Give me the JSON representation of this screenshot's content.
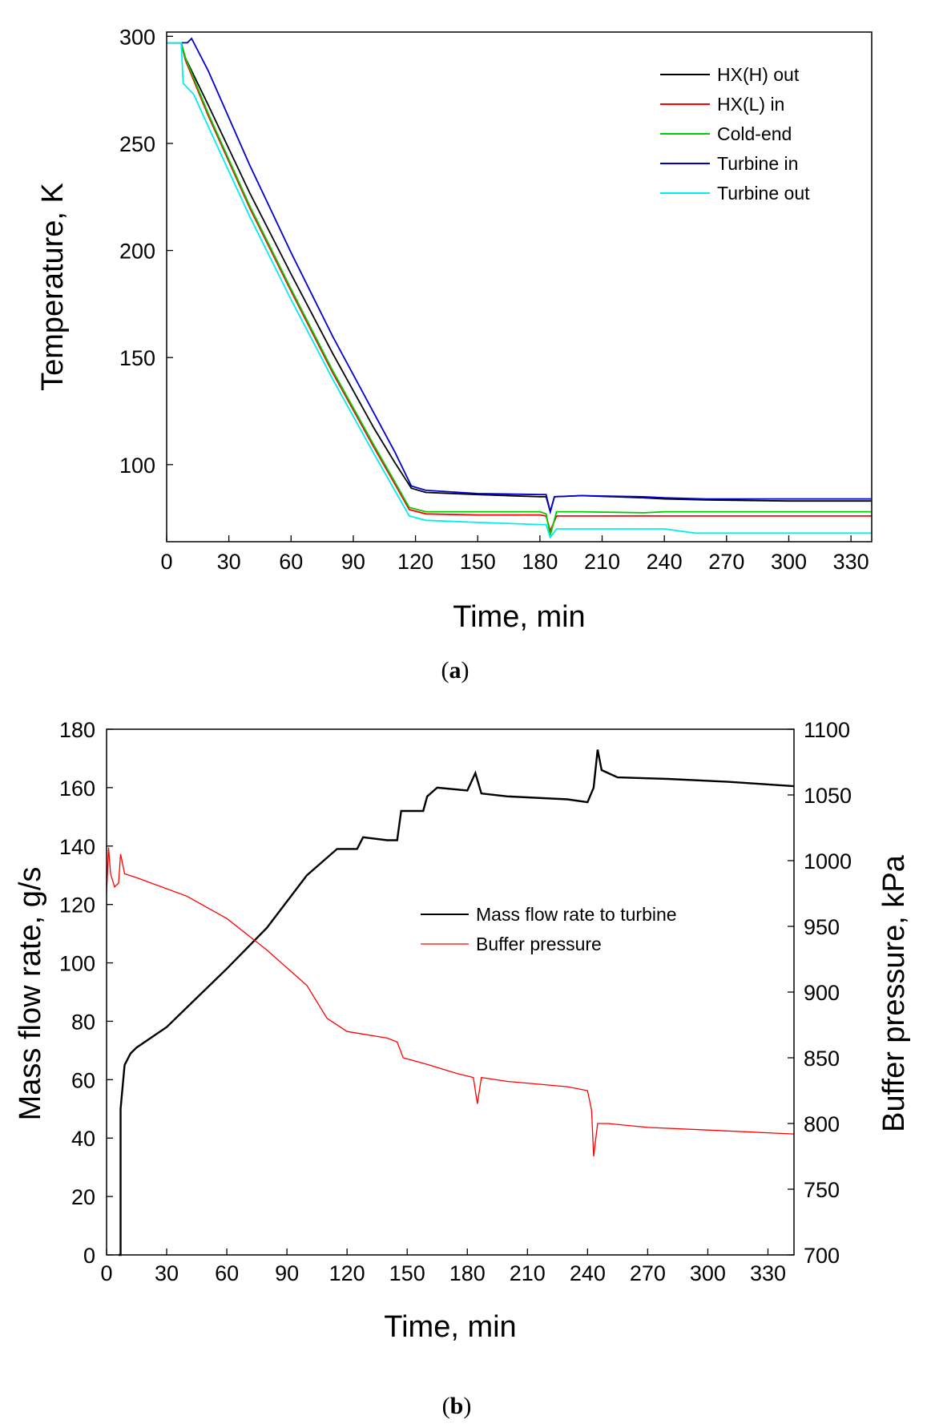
{
  "chart_data": [
    {
      "id": "a",
      "type": "line",
      "caption_letter": "a",
      "xlabel": "Time, min",
      "ylabel": "Temperature, K",
      "xlim": [
        0,
        340
      ],
      "ylim": [
        64,
        302
      ],
      "xticks": [
        0,
        30,
        60,
        90,
        120,
        150,
        180,
        210,
        240,
        270,
        300,
        330
      ],
      "yticks": [
        100,
        150,
        200,
        250,
        300
      ],
      "legend_position": "top-right",
      "series": [
        {
          "name": "HX(H) out",
          "color": "#000000",
          "points": [
            [
              0,
              297
            ],
            [
              7,
              297
            ],
            [
              9,
              290
            ],
            [
              20,
              268
            ],
            [
              40,
              227
            ],
            [
              60,
              189
            ],
            [
              80,
              152
            ],
            [
              100,
              117
            ],
            [
              110,
              101
            ],
            [
              118,
              89
            ],
            [
              125,
              87
            ],
            [
              150,
              86
            ],
            [
              180,
              85
            ],
            [
              183,
              85
            ],
            [
              185,
              78
            ],
            [
              187,
              85
            ],
            [
              200,
              85.5
            ],
            [
              230,
              84.5
            ],
            [
              240,
              84
            ],
            [
              260,
              83.5
            ],
            [
              300,
              83
            ],
            [
              340,
              83
            ]
          ]
        },
        {
          "name": "HX(L) in",
          "color": "#ff0000",
          "points": [
            [
              0,
              297
            ],
            [
              7,
              297
            ],
            [
              9,
              289
            ],
            [
              20,
              263
            ],
            [
              40,
              220
            ],
            [
              60,
              181
            ],
            [
              80,
              143
            ],
            [
              100,
              108
            ],
            [
              110,
              91
            ],
            [
              117,
              79
            ],
            [
              125,
              77
            ],
            [
              150,
              76.5
            ],
            [
              180,
              76.5
            ],
            [
              183,
              76
            ],
            [
              185,
              69
            ],
            [
              188,
              76
            ],
            [
              200,
              76
            ],
            [
              230,
              76
            ],
            [
              240,
              76
            ],
            [
              260,
              76
            ],
            [
              300,
              76
            ],
            [
              340,
              76
            ]
          ]
        },
        {
          "name": "Cold-end",
          "color": "#00cc00",
          "points": [
            [
              0,
              297
            ],
            [
              7,
              297
            ],
            [
              9,
              290
            ],
            [
              20,
              264
            ],
            [
              40,
              221
            ],
            [
              60,
              182
            ],
            [
              80,
              144
            ],
            [
              100,
              109
            ],
            [
              110,
              92
            ],
            [
              117,
              80
            ],
            [
              125,
              78
            ],
            [
              150,
              78
            ],
            [
              180,
              78
            ],
            [
              183,
              77
            ],
            [
              185,
              67
            ],
            [
              188,
              78
            ],
            [
              200,
              78
            ],
            [
              230,
              77.5
            ],
            [
              240,
              78
            ],
            [
              260,
              78
            ],
            [
              300,
              78
            ],
            [
              340,
              78
            ]
          ]
        },
        {
          "name": "Turbine in",
          "color": "#0000cc",
          "points": [
            [
              0,
              297
            ],
            [
              10,
              297
            ],
            [
              12,
              299
            ],
            [
              20,
              284
            ],
            [
              40,
              240
            ],
            [
              60,
              199
            ],
            [
              80,
              160
            ],
            [
              100,
              124
            ],
            [
              110,
              106
            ],
            [
              118,
              90
            ],
            [
              125,
              88
            ],
            [
              150,
              86.5
            ],
            [
              180,
              86
            ],
            [
              183,
              86
            ],
            [
              185,
              78
            ],
            [
              187,
              85
            ],
            [
              200,
              85.5
            ],
            [
              230,
              85
            ],
            [
              240,
              84.5
            ],
            [
              260,
              84
            ],
            [
              300,
              84
            ],
            [
              340,
              84
            ]
          ]
        },
        {
          "name": "Turbine out",
          "color": "#00eeee",
          "points": [
            [
              0,
              297
            ],
            [
              7,
              297
            ],
            [
              8,
              278
            ],
            [
              13,
              273
            ],
            [
              20,
              258
            ],
            [
              40,
              216
            ],
            [
              60,
              177
            ],
            [
              80,
              140
            ],
            [
              100,
              105
            ],
            [
              110,
              88
            ],
            [
              117,
              76
            ],
            [
              125,
              74
            ],
            [
              150,
              73
            ],
            [
              180,
              72
            ],
            [
              183,
              72
            ],
            [
              185,
              66
            ],
            [
              188,
              70
            ],
            [
              200,
              70
            ],
            [
              230,
              70
            ],
            [
              240,
              70
            ],
            [
              255,
              68
            ],
            [
              300,
              68
            ],
            [
              340,
              68
            ]
          ]
        }
      ]
    },
    {
      "id": "b",
      "type": "line",
      "caption_letter": "b",
      "xlabel": "Time, min",
      "ylabel_left": "Mass flow rate, g/s",
      "ylabel_right": "Buffer pressure, kPa",
      "xlim": [
        0,
        343
      ],
      "ylim_left": [
        0,
        180
      ],
      "ylim_right": [
        700,
        1100
      ],
      "xticks": [
        0,
        30,
        60,
        90,
        120,
        150,
        180,
        210,
        240,
        270,
        300,
        330
      ],
      "yticks_left": [
        0,
        20,
        40,
        60,
        80,
        100,
        120,
        140,
        160,
        180
      ],
      "yticks_right": [
        700,
        750,
        800,
        850,
        900,
        950,
        1000,
        1050,
        1100
      ],
      "legend_position": "center-right",
      "series": [
        {
          "name": "Mass flow rate to turbine",
          "color": "#000000",
          "axis": "left",
          "points": [
            [
              6,
              0
            ],
            [
              7,
              0
            ],
            [
              7,
              50
            ],
            [
              9,
              65
            ],
            [
              12,
              69
            ],
            [
              15,
              71
            ],
            [
              30,
              78
            ],
            [
              60,
              98
            ],
            [
              80,
              112
            ],
            [
              100,
              130
            ],
            [
              115,
              139
            ],
            [
              125,
              139
            ],
            [
              128,
              143
            ],
            [
              140,
              142
            ],
            [
              145,
              142
            ],
            [
              147,
              152
            ],
            [
              158,
              152
            ],
            [
              160,
              157
            ],
            [
              165,
              160
            ],
            [
              180,
              159
            ],
            [
              184,
              165
            ],
            [
              187,
              158
            ],
            [
              200,
              157
            ],
            [
              230,
              156
            ],
            [
              240,
              155
            ],
            [
              243,
              160
            ],
            [
              245,
              173
            ],
            [
              247,
              166
            ],
            [
              255,
              163.5
            ],
            [
              280,
              163
            ],
            [
              310,
              162
            ],
            [
              343,
              160.5
            ]
          ]
        },
        {
          "name": "Buffer pressure",
          "color": "#ff0000",
          "axis": "right",
          "points": [
            [
              0,
              975
            ],
            [
              1,
              1010
            ],
            [
              2,
              990
            ],
            [
              4,
              980
            ],
            [
              6,
              983
            ],
            [
              7,
              1005
            ],
            [
              9,
              990
            ],
            [
              15,
              987
            ],
            [
              40,
              973
            ],
            [
              60,
              956
            ],
            [
              80,
              932
            ],
            [
              100,
              905
            ],
            [
              110,
              880
            ],
            [
              120,
              870
            ],
            [
              140,
              865
            ],
            [
              145,
              862
            ],
            [
              148,
              850
            ],
            [
              160,
              845
            ],
            [
              175,
              838
            ],
            [
              183,
              835
            ],
            [
              185,
              815
            ],
            [
              187,
              835
            ],
            [
              200,
              832
            ],
            [
              230,
              828
            ],
            [
              240,
              825
            ],
            [
              242,
              810
            ],
            [
              243,
              775
            ],
            [
              245,
              800
            ],
            [
              250,
              800
            ],
            [
              270,
              797
            ],
            [
              300,
              795
            ],
            [
              343,
              792
            ]
          ]
        }
      ]
    }
  ]
}
